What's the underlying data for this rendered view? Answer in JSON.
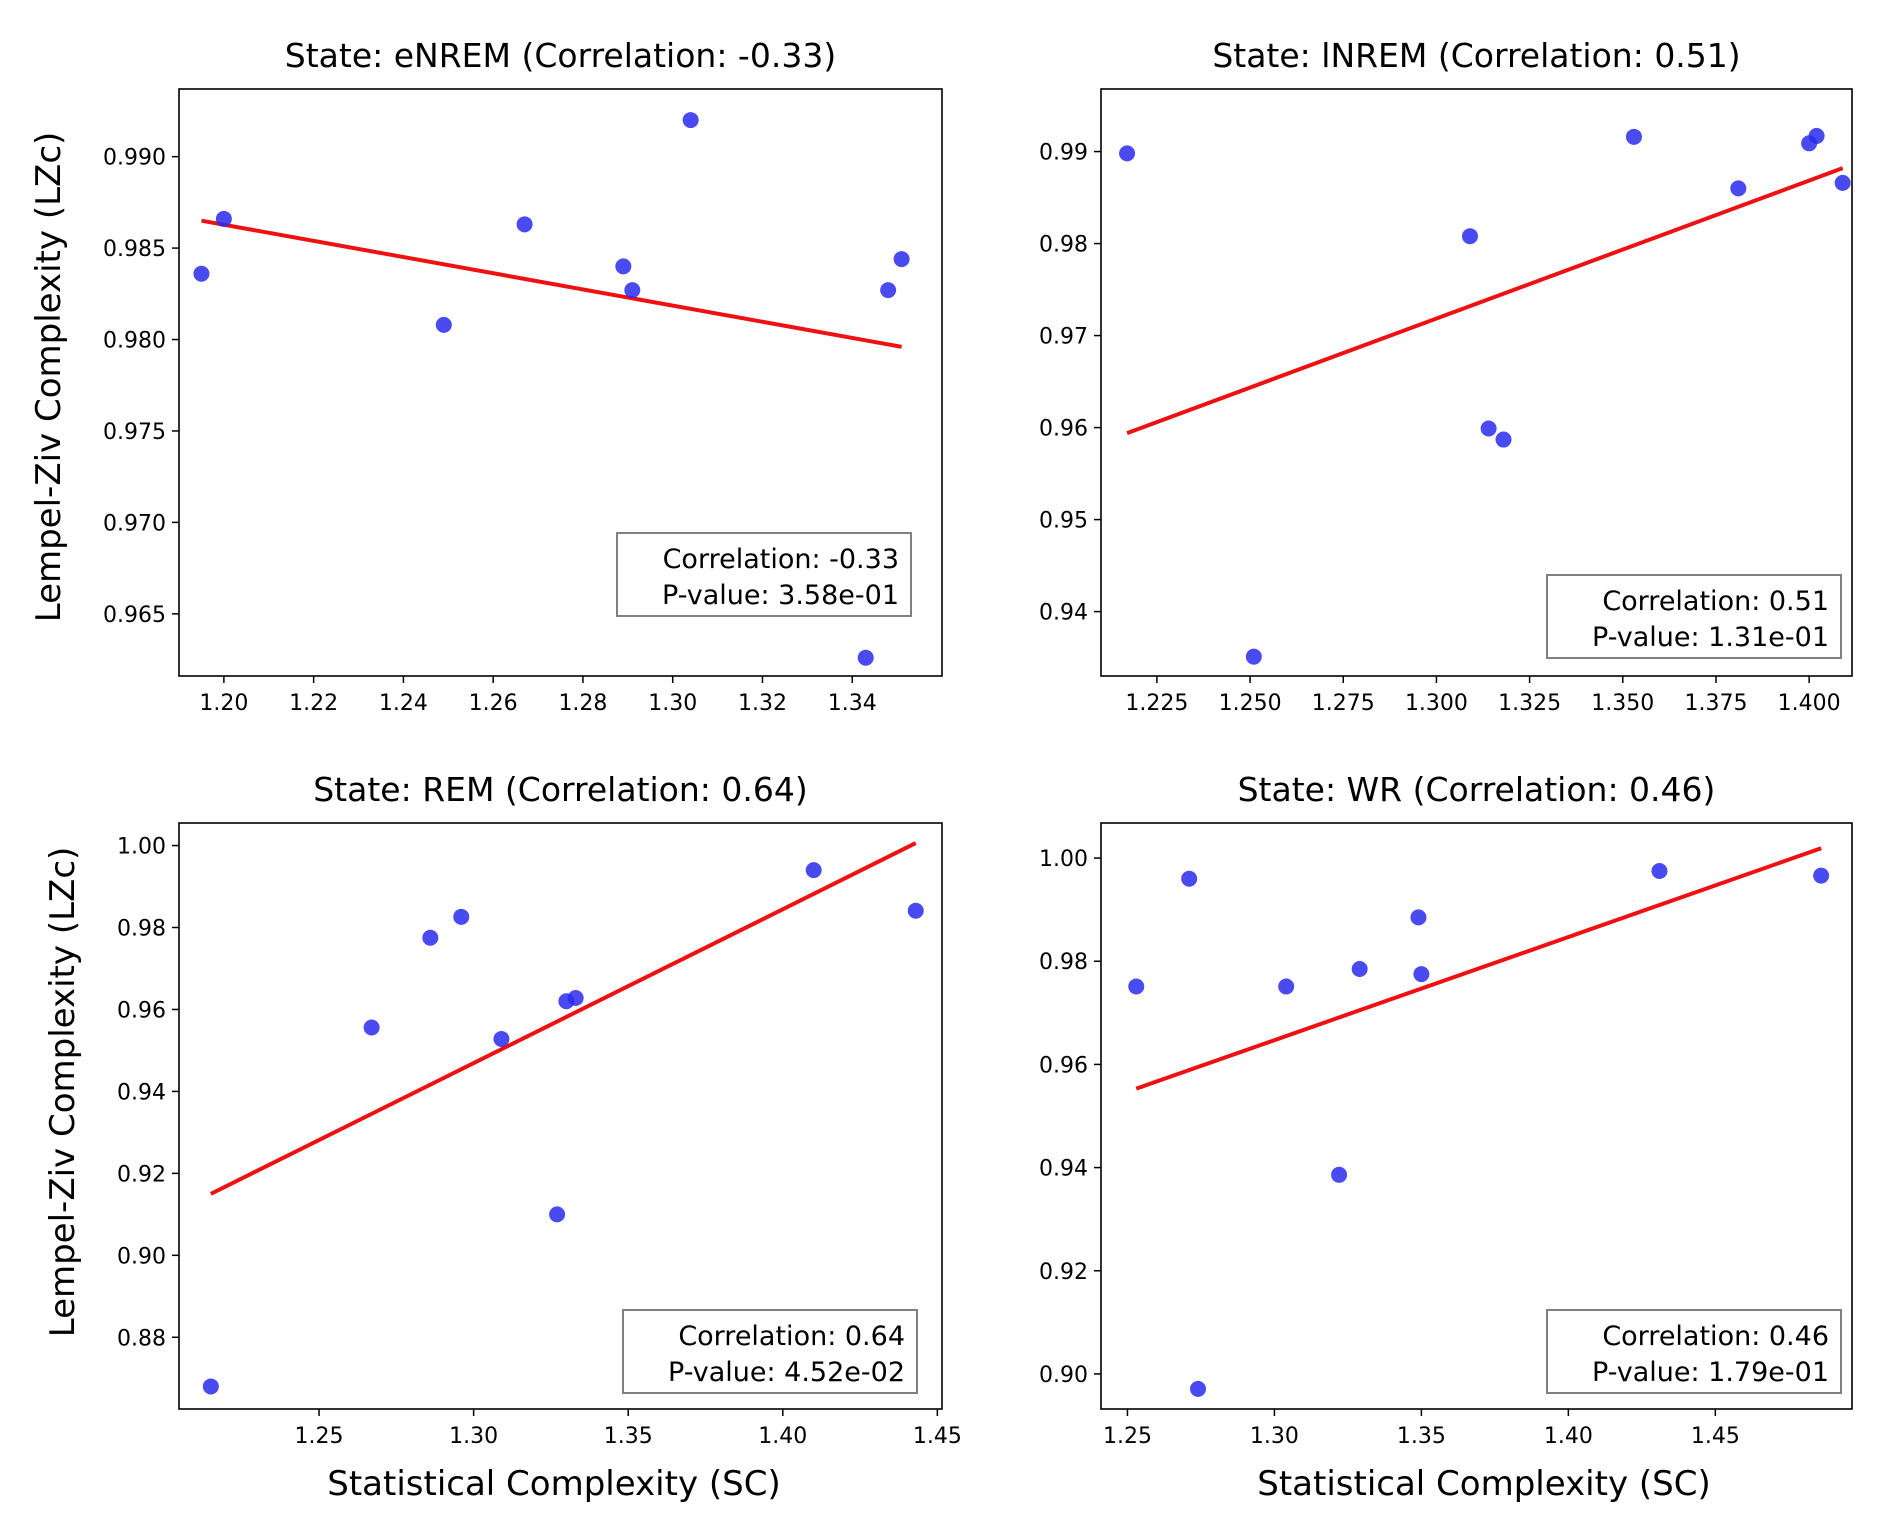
{
  "figure": {
    "shared_ylabel": "Lempel-Ziv Complexity (LZc)",
    "shared_xlabel": "Statistical Complexity (SC)"
  },
  "colors": {
    "points": "#2a2aee",
    "fit_line": "#ee1111",
    "axis": "#000000",
    "stats_box_border": "#808080"
  },
  "chart_data": [
    {
      "type": "scatter",
      "title": "State: eNREM (Correlation: -0.33)",
      "xlabel": "",
      "ylabel": "Lempel-Ziv Complexity (LZc)",
      "xlim": [
        1.19,
        1.36
      ],
      "ylim": [
        0.9616,
        0.9937
      ],
      "xticks": [
        "1.20",
        "1.22",
        "1.24",
        "1.26",
        "1.28",
        "1.30",
        "1.32",
        "1.34"
      ],
      "yticks": [
        "0.965",
        "0.970",
        "0.975",
        "0.980",
        "0.985",
        "0.990"
      ],
      "points": [
        {
          "x": 1.195,
          "y": 0.9836
        },
        {
          "x": 1.2,
          "y": 0.9866
        },
        {
          "x": 1.249,
          "y": 0.9808
        },
        {
          "x": 1.267,
          "y": 0.9863
        },
        {
          "x": 1.289,
          "y": 0.984
        },
        {
          "x": 1.291,
          "y": 0.9827
        },
        {
          "x": 1.304,
          "y": 0.992
        },
        {
          "x": 1.343,
          "y": 0.9626
        },
        {
          "x": 1.348,
          "y": 0.9827
        },
        {
          "x": 1.351,
          "y": 0.9844
        }
      ],
      "fit_line": {
        "x": [
          1.195,
          1.351
        ],
        "y": [
          0.9865,
          0.9796
        ]
      },
      "stats": {
        "correlation": "Correlation: -0.33",
        "p_value": "P-value: 3.58e-01"
      },
      "legend_position": "lower-right"
    },
    {
      "type": "scatter",
      "title": "State: lNREM (Correlation: 0.51)",
      "xlabel": "",
      "ylabel": "",
      "xlim": [
        1.21,
        1.4115
      ],
      "ylim": [
        0.933,
        0.9968
      ],
      "xticks": [
        "1.225",
        "1.250",
        "1.275",
        "1.300",
        "1.325",
        "1.350",
        "1.375",
        "1.400"
      ],
      "yticks": [
        "0.94",
        "0.95",
        "0.96",
        "0.97",
        "0.98",
        "0.99"
      ],
      "points": [
        {
          "x": 1.217,
          "y": 0.9898
        },
        {
          "x": 1.251,
          "y": 0.9351
        },
        {
          "x": 1.309,
          "y": 0.9808
        },
        {
          "x": 1.314,
          "y": 0.9599
        },
        {
          "x": 1.318,
          "y": 0.9587
        },
        {
          "x": 1.353,
          "y": 0.9916
        },
        {
          "x": 1.381,
          "y": 0.986
        },
        {
          "x": 1.4,
          "y": 0.9909
        },
        {
          "x": 1.402,
          "y": 0.9917
        },
        {
          "x": 1.409,
          "y": 0.9866
        }
      ],
      "fit_line": {
        "x": [
          1.217,
          1.409
        ],
        "y": [
          0.9594,
          0.9882
        ]
      },
      "stats": {
        "correlation": "Correlation: 0.51",
        "p_value": "P-value: 1.31e-01"
      },
      "legend_position": "lower-right"
    },
    {
      "type": "scatter",
      "title": "State: REM (Correlation: 0.64)",
      "xlabel": "Statistical Complexity (SC)",
      "ylabel": "Lempel-Ziv Complexity (LZc)",
      "xlim": [
        1.2047,
        1.4515
      ],
      "ylim": [
        0.8625,
        1.0055
      ],
      "xticks": [
        "1.25",
        "1.30",
        "1.35",
        "1.40",
        "1.45"
      ],
      "yticks": [
        "0.88",
        "0.90",
        "0.92",
        "0.94",
        "0.96",
        "0.98",
        "1.00"
      ],
      "points": [
        {
          "x": 1.215,
          "y": 0.868
        },
        {
          "x": 1.267,
          "y": 0.9556
        },
        {
          "x": 1.286,
          "y": 0.9775
        },
        {
          "x": 1.296,
          "y": 0.9826
        },
        {
          "x": 1.309,
          "y": 0.9528
        },
        {
          "x": 1.327,
          "y": 0.91
        },
        {
          "x": 1.33,
          "y": 0.962
        },
        {
          "x": 1.333,
          "y": 0.9628
        },
        {
          "x": 1.41,
          "y": 0.994
        },
        {
          "x": 1.443,
          "y": 0.9841
        }
      ],
      "fit_line": {
        "x": [
          1.215,
          1.443
        ],
        "y": [
          0.915,
          1.0006
        ]
      },
      "stats": {
        "correlation": "Correlation: 0.64",
        "p_value": "P-value: 4.52e-02"
      },
      "legend_position": "lower-right"
    },
    {
      "type": "scatter",
      "title": "State: WR (Correlation: 0.46)",
      "xlabel": "Statistical Complexity (SC)",
      "ylabel": "",
      "xlim": [
        1.241,
        1.4965
      ],
      "ylim": [
        0.8932,
        1.0068
      ],
      "xticks": [
        "1.25",
        "1.30",
        "1.35",
        "1.40",
        "1.45"
      ],
      "yticks": [
        "0.90",
        "0.92",
        "0.94",
        "0.96",
        "0.98",
        "1.00"
      ],
      "points": [
        {
          "x": 1.253,
          "y": 0.9751
        },
        {
          "x": 1.271,
          "y": 0.996
        },
        {
          "x": 1.274,
          "y": 0.8971
        },
        {
          "x": 1.304,
          "y": 0.9751
        },
        {
          "x": 1.322,
          "y": 0.9386
        },
        {
          "x": 1.329,
          "y": 0.9785
        },
        {
          "x": 1.349,
          "y": 0.9885
        },
        {
          "x": 1.35,
          "y": 0.9775
        },
        {
          "x": 1.431,
          "y": 0.9975
        },
        {
          "x": 1.486,
          "y": 0.9966
        }
      ],
      "fit_line": {
        "x": [
          1.253,
          1.486
        ],
        "y": [
          0.9553,
          1.0019
        ]
      },
      "stats": {
        "correlation": "Correlation: 0.46",
        "p_value": "P-value: 1.79e-01"
      },
      "legend_position": "lower-right"
    }
  ]
}
